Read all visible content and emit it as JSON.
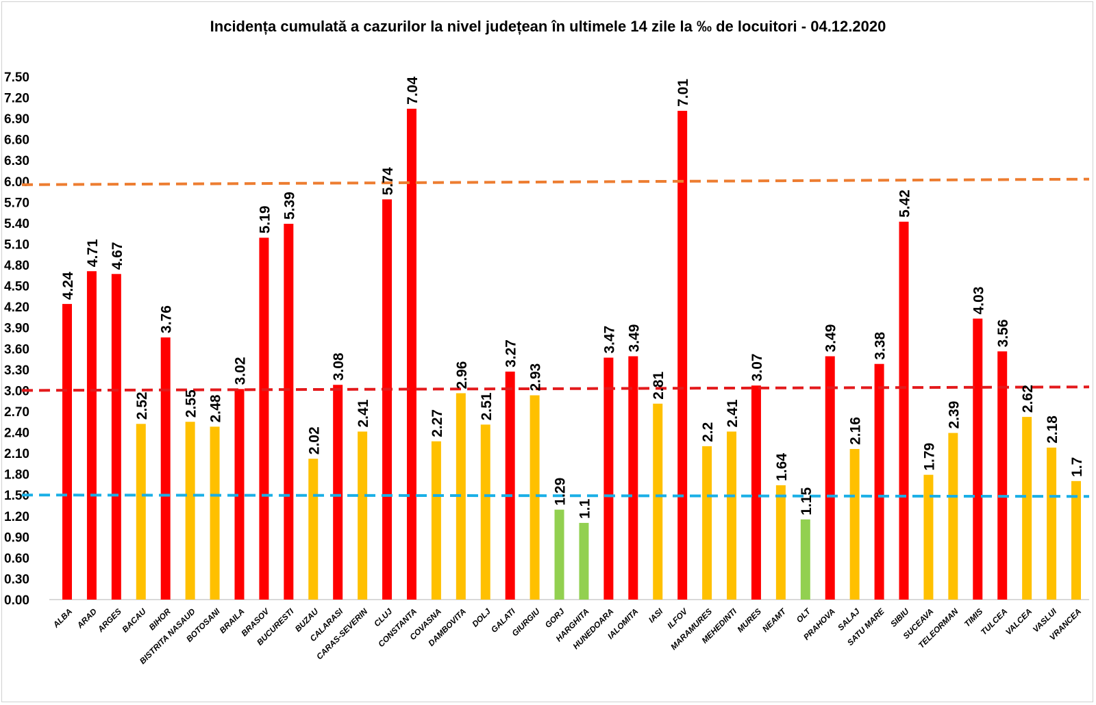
{
  "chart_data": {
    "type": "bar",
    "title": "Incidența cumulată a cazurilor la nivel județean în ultimele 14 zile la ‰ de locuitori - 04.12.2020",
    "xlabel": "",
    "ylabel": "",
    "ylim": [
      0,
      7.5
    ],
    "ytick_step": 0.3,
    "grid": false,
    "legend": "none",
    "categories": [
      "ALBA",
      "ARAD",
      "ARGES",
      "BACAU",
      "BIHOR",
      "BISTRITA NASAUD",
      "BOTOSANI",
      "BRAILA",
      "BRASOV",
      "BUCURESTI",
      "BUZAU",
      "CALARASI",
      "CARAS-SEVERIN",
      "CLUJ",
      "CONSTANTA",
      "COVASNA",
      "DAMBOVITA",
      "DOLJ",
      "GALATI",
      "GIURGIU",
      "GORJ",
      "HARGHITA",
      "HUNEDOARA",
      "IALOMITA",
      "IASI",
      "ILFOV",
      "MARAMURES",
      "MEHEDINTI",
      "MURES",
      "NEAMT",
      "OLT",
      "PRAHOVA",
      "SALAJ",
      "SATU MARE",
      "SIBIU",
      "SUCEAVA",
      "TELEORMAN",
      "TIMIS",
      "TULCEA",
      "VALCEA",
      "VASLUI",
      "VRANCEA"
    ],
    "values": [
      4.24,
      4.71,
      4.67,
      2.52,
      3.76,
      2.55,
      2.48,
      3.02,
      5.19,
      5.39,
      2.02,
      3.08,
      2.41,
      5.74,
      7.04,
      2.27,
      2.96,
      2.51,
      3.27,
      2.93,
      1.29,
      1.1,
      3.47,
      3.49,
      2.81,
      7.01,
      2.2,
      2.41,
      3.07,
      1.64,
      1.15,
      3.49,
      2.16,
      3.38,
      5.42,
      1.79,
      2.39,
      4.03,
      3.56,
      2.62,
      2.18,
      1.7
    ],
    "data_labels": [
      "4.24",
      "4.71",
      "4.67",
      "2.52",
      "3.76",
      "2.55",
      "2.48",
      "3.02",
      "5.19",
      "5.39",
      "2.02",
      "3.08",
      "2.41",
      "5.74",
      "7.04",
      "2.27",
      "2.96",
      "2.51",
      "3.27",
      "2.93",
      "1.29",
      "1.1",
      "3.47",
      "3.49",
      "2.81",
      "7.01",
      "2.2",
      "2.41",
      "3.07",
      "1.64",
      "1.15",
      "3.49",
      "2.16",
      "3.38",
      "5.42",
      "1.79",
      "2.39",
      "4.03",
      "3.56",
      "2.62",
      "2.18",
      "1.7"
    ],
    "bar_colors": {
      "high": "#ff0000",
      "medium": "#ffc000",
      "low": "#92d050"
    },
    "thresholds": {
      "high": 3.0,
      "low": 1.5
    },
    "reference_lines": [
      {
        "value_start": 5.95,
        "value_end": 6.03,
        "color": "#ed7d31",
        "style": "dashed"
      },
      {
        "value_start": 3.0,
        "value_end": 3.05,
        "color": "#e31a1c",
        "style": "dashed"
      },
      {
        "value_start": 1.5,
        "value_end": 1.48,
        "color": "#1aafe6",
        "style": "dashed"
      }
    ],
    "yticks": [
      "0.00",
      "0.30",
      "0.60",
      "0.90",
      "1.20",
      "1.50",
      "1.80",
      "2.10",
      "2.40",
      "2.70",
      "3.00",
      "3.30",
      "3.60",
      "3.90",
      "4.20",
      "4.50",
      "4.80",
      "5.10",
      "5.40",
      "5.70",
      "6.00",
      "6.30",
      "6.60",
      "6.90",
      "7.20",
      "7.50"
    ]
  }
}
